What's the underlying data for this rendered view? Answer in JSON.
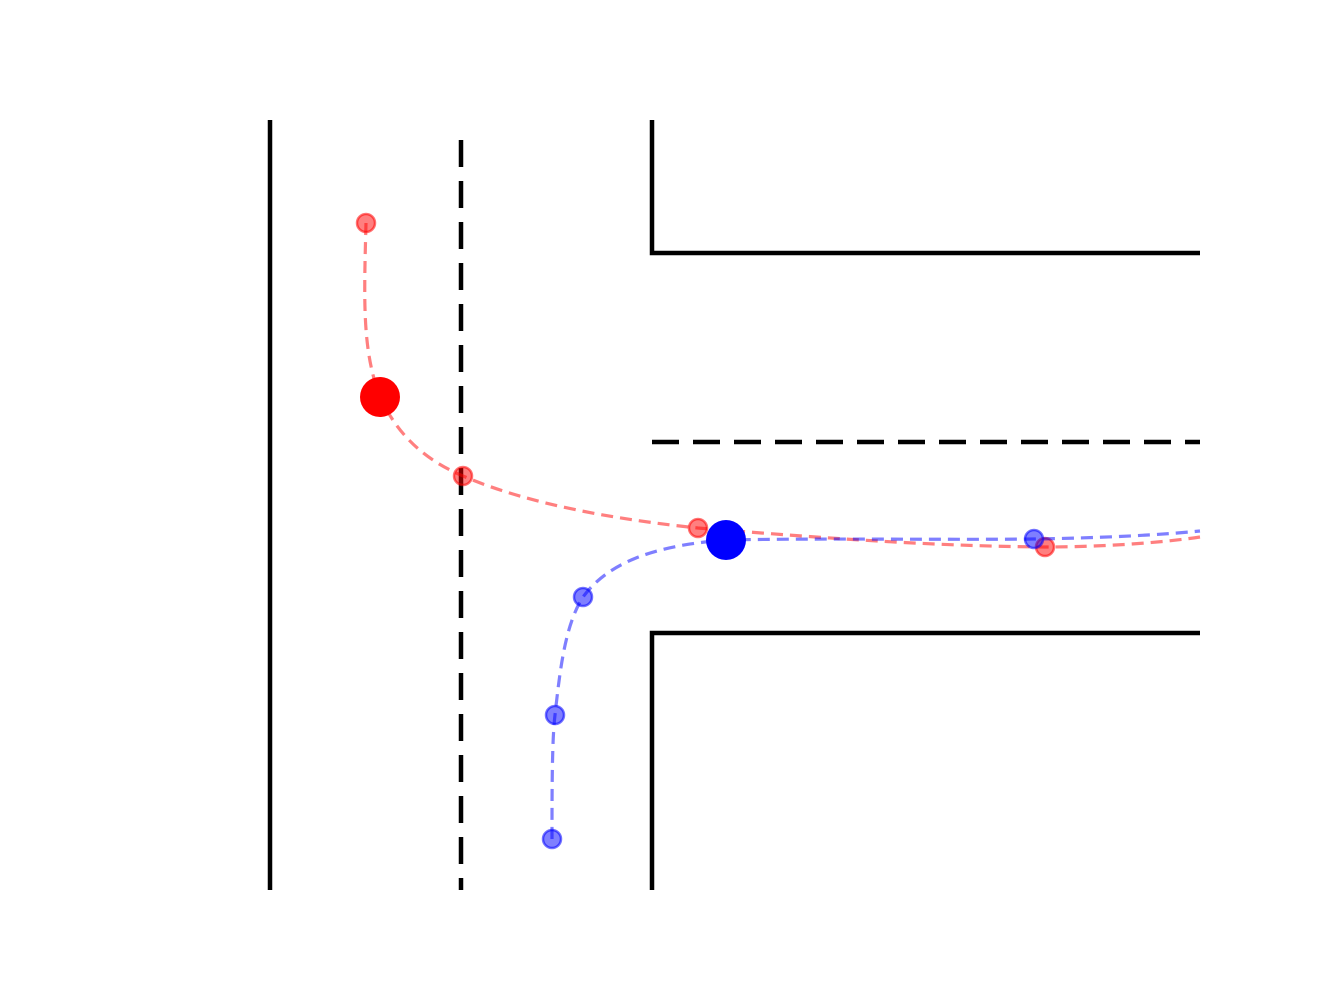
{
  "colors": {
    "background": "#ffffff",
    "road": "#000000",
    "agent_red": "#ff0000",
    "agent_blue": "#0000ff"
  },
  "scene": {
    "type": "t-intersection",
    "road_edges": 4,
    "lane_dividers": 2
  },
  "agents": [
    {
      "id": "red",
      "color": "#ff0000",
      "waypoints": 5,
      "current_position_marker": true
    },
    {
      "id": "blue",
      "color": "#0000ff",
      "waypoints": 5,
      "current_position_marker": true
    }
  ]
}
